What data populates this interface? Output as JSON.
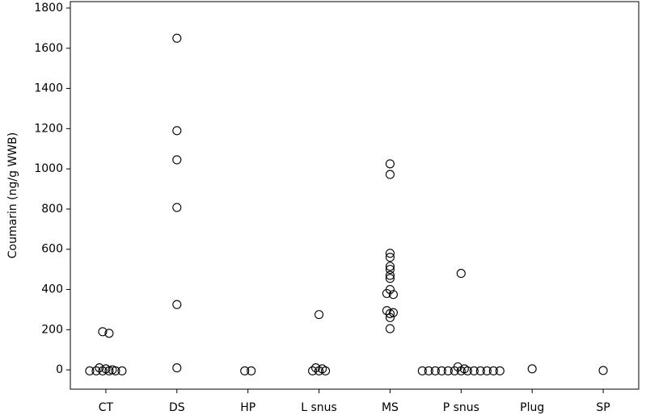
{
  "chart_data": {
    "type": "scatter",
    "ylabel": "Coumarin (ng/g WWB)",
    "categories": [
      "CT",
      "DS",
      "HP",
      "L snus",
      "MS",
      "P snus",
      "Plug",
      "SP"
    ],
    "values": [
      [
        190,
        182,
        10,
        5,
        0,
        -5,
        -5,
        -5,
        -5,
        -5,
        -5
      ],
      [
        1650,
        1190,
        1045,
        808,
        325,
        10
      ],
      [
        -5,
        -5
      ],
      [
        275,
        10,
        5,
        -5,
        -5,
        -5
      ],
      [
        1025,
        972,
        580,
        560,
        515,
        500,
        470,
        455,
        400,
        380,
        375,
        295,
        285,
        280,
        260,
        205
      ],
      [
        480,
        15,
        5,
        -5,
        -5,
        -5,
        -5,
        -5,
        -5,
        -5,
        -5,
        -5,
        -5,
        -5,
        -5,
        -5
      ],
      [
        5
      ],
      [
        -3
      ]
    ],
    "color": "#000000",
    "ylim": [
      -96,
      1832
    ],
    "yticks": [
      0,
      200,
      400,
      600,
      800,
      1000,
      1200,
      1400,
      1600,
      1800
    ],
    "grid": false
  }
}
